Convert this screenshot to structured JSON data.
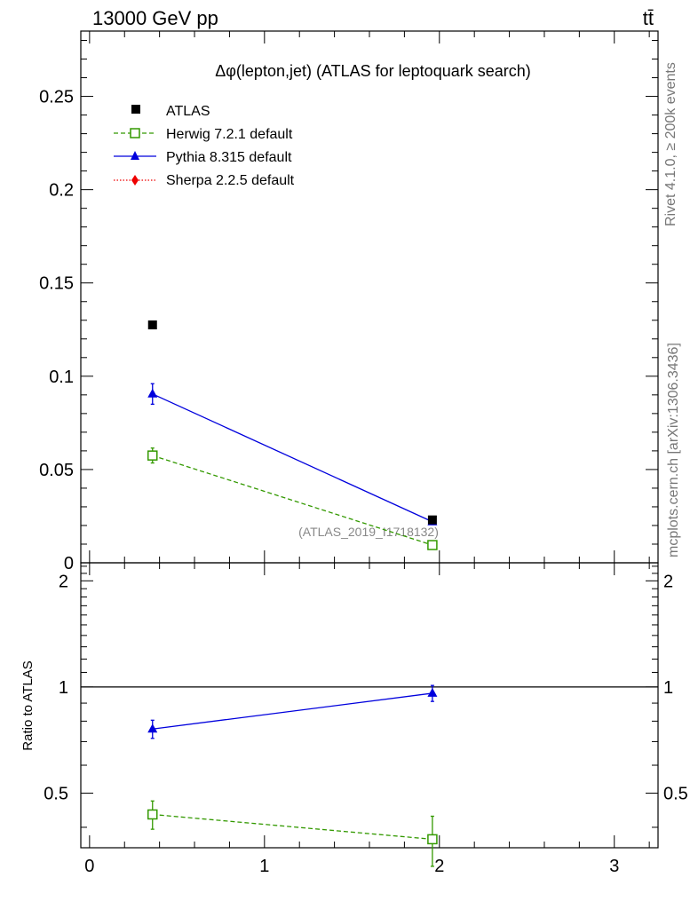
{
  "header": {
    "energy_label": "13000 GeV pp",
    "process_label": "tt̄"
  },
  "side_labels": {
    "rivet": "Rivet 4.1.0, ≥ 200k events",
    "mcplots": "mcplots.cern.ch [arXiv:1306.3436]"
  },
  "colors": {
    "atlas": "#000000",
    "herwig": "#339900",
    "pythia": "#0000dd",
    "sherpa": "#ee0000",
    "watermark": "#888888"
  },
  "chart_data": [
    {
      "panel": "main",
      "type": "line",
      "title": "Δφ(lepton,jet) (ATLAS for leptoquark search)",
      "watermark": "(ATLAS_2019_I1718132)",
      "xlabel": "",
      "ylabel": "",
      "xlim": [
        -0.05,
        3.25
      ],
      "ylim": [
        0,
        0.285
      ],
      "x_ticks": [
        0,
        1,
        2,
        3
      ],
      "y_ticks": [
        {
          "value": 0,
          "label": "0"
        },
        {
          "value": 0.05,
          "label": "0.05"
        },
        {
          "value": 0.1,
          "label": "0.1"
        },
        {
          "value": 0.15,
          "label": "0.15"
        },
        {
          "value": 0.2,
          "label": "0.2"
        },
        {
          "value": 0.25,
          "label": "0.25"
        }
      ],
      "legend_position": "top-left",
      "series": [
        {
          "name": "ATLAS",
          "key": "atlas",
          "marker": "square",
          "line": "none",
          "x": [
            0.36,
            1.96
          ],
          "values": [
            0.1275,
            0.023
          ],
          "errors": [
            0,
            0
          ]
        },
        {
          "name": "Herwig 7.2.1 default",
          "key": "herwig",
          "marker": "open-square",
          "line": "dashed",
          "x": [
            0.36,
            1.96
          ],
          "values": [
            0.0575,
            0.0095
          ],
          "errors": [
            0.004,
            0.001
          ]
        },
        {
          "name": "Pythia 8.315 default",
          "key": "pythia",
          "marker": "triangle",
          "line": "solid",
          "x": [
            0.36,
            1.96
          ],
          "values": [
            0.0905,
            0.022
          ],
          "errors": [
            0.0055,
            0.0015
          ]
        },
        {
          "name": "Sherpa 2.2.5 default",
          "key": "sherpa",
          "marker": "diamond",
          "line": "dotted",
          "x": [],
          "values": [],
          "errors": []
        }
      ]
    },
    {
      "panel": "ratio",
      "type": "line",
      "ylabel": "Ratio to ATLAS",
      "xlim": [
        -0.05,
        3.25
      ],
      "ylim": [
        0.35,
        2.25
      ],
      "x_ticks": [
        {
          "value": 0,
          "label": "0"
        },
        {
          "value": 1,
          "label": "1"
        },
        {
          "value": 2,
          "label": "2"
        },
        {
          "value": 3,
          "label": "3"
        }
      ],
      "y_ticks": [
        {
          "value": 0.5,
          "label": "0.5"
        },
        {
          "value": 1,
          "label": "1"
        },
        {
          "value": 2,
          "label": "2"
        }
      ],
      "reference_line": 1,
      "series": [
        {
          "name": "Herwig 7.2.1 default",
          "key": "herwig",
          "marker": "open-square",
          "line": "dashed",
          "x": [
            0.36,
            1.96
          ],
          "values": [
            0.435,
            0.37
          ],
          "errors": [
            0.04,
            0.06
          ]
        },
        {
          "name": "Pythia 8.315 default",
          "key": "pythia",
          "marker": "triangle",
          "line": "solid",
          "x": [
            0.36,
            1.96
          ],
          "values": [
            0.76,
            0.96
          ],
          "errors": [
            0.045,
            0.05
          ]
        }
      ]
    }
  ]
}
